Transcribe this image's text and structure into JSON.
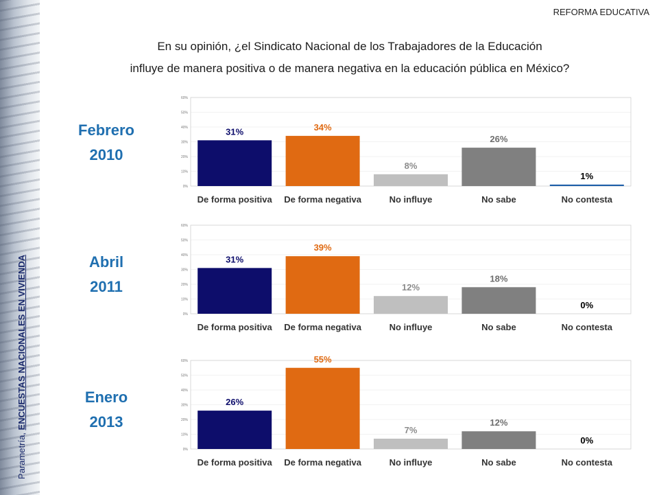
{
  "header": {
    "tag": "REFORMA EDUCATIVA"
  },
  "question": {
    "line1": "En su opinión, ¿el Sindicato Nacional de los Trabajadores de la Educación",
    "line2": "influye de manera positiva o de manera negativa en la educación pública en México?"
  },
  "side": {
    "prefix": "Parametría, ",
    "emphasis": "ENCUESTAS NACIONALES EN VIVIENDA"
  },
  "colors": [
    "#0d0d6b",
    "#e06a12",
    "#bfbfbf",
    "#808080",
    "#1f5fa8"
  ],
  "value_colors": [
    "#0d0d6b",
    "#e06a12",
    "#8c8c8c",
    "#6e6e6e",
    "#000000"
  ],
  "chart_data": [
    {
      "type": "bar",
      "period_month": "Febrero",
      "period_year": "2010",
      "categories": [
        "De forma positiva",
        "De forma negativa",
        "No influye",
        "No sabe",
        "No contesta"
      ],
      "values": [
        31,
        34,
        8,
        26,
        1
      ],
      "value_labels": [
        "31%",
        "34%",
        "8%",
        "26%",
        "1%"
      ],
      "ylim": [
        0,
        60
      ],
      "yticks": [
        "0%",
        "10%",
        "20%",
        "30%",
        "40%",
        "50%",
        "60%"
      ]
    },
    {
      "type": "bar",
      "period_month": "Abril",
      "period_year": "2011",
      "categories": [
        "De forma positiva",
        "De forma negativa",
        "No influye",
        "No sabe",
        "No contesta"
      ],
      "values": [
        31,
        39,
        12,
        18,
        0
      ],
      "value_labels": [
        "31%",
        "39%",
        "12%",
        "18%",
        "0%"
      ],
      "ylim": [
        0,
        60
      ],
      "yticks": [
        "0%",
        "10%",
        "20%",
        "30%",
        "40%",
        "50%",
        "60%"
      ]
    },
    {
      "type": "bar",
      "period_month": "Enero",
      "period_year": "2013",
      "categories": [
        "De forma positiva",
        "De forma negativa",
        "No influye",
        "No sabe",
        "No contesta"
      ],
      "values": [
        26,
        55,
        7,
        12,
        0
      ],
      "value_labels": [
        "26%",
        "55%",
        "7%",
        "12%",
        "0%"
      ],
      "ylim": [
        0,
        60
      ],
      "yticks": [
        "0%",
        "10%",
        "20%",
        "30%",
        "40%",
        "50%",
        "60%"
      ]
    }
  ]
}
